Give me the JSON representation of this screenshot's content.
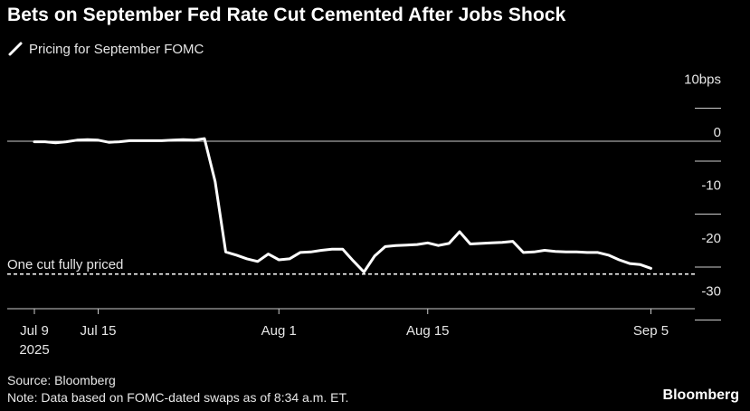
{
  "title": "Bets on September Fed Rate Cut Cemented After Jobs Shock",
  "legend": {
    "series_label": "Pricing for September FOMC",
    "icon": "slash-line-icon"
  },
  "source": "Source: Bloomberg",
  "note": "Note: Data based on FOMC-dated swaps as of 8:34 a.m. ET.",
  "brand": "Bloomberg",
  "colors": {
    "background": "#000000",
    "line": "#ffffff",
    "axis": "#cccccc",
    "text": "#e6e6e6"
  },
  "chart_data": {
    "type": "line",
    "title": "Bets on September Fed Rate Cut Cemented After Jobs Shock",
    "xlabel": "",
    "ylabel": "",
    "y_unit": "bps",
    "ylim": [
      -30,
      10
    ],
    "y_ticks": [
      10,
      0,
      -10,
      -20,
      -30
    ],
    "y_tick_labels": [
      "10bps",
      "0",
      "-10",
      "-20",
      "-30"
    ],
    "x_tick_dates": [
      "2025-07-09",
      "2025-07-15",
      "2025-08-01",
      "2025-08-15",
      "2025-09-05"
    ],
    "x_tick_labels": [
      "Jul 9",
      "Jul 15",
      "Aug 1",
      "Aug 15",
      "Sep 5"
    ],
    "x_year_label": "2025",
    "grid": false,
    "zero_line": true,
    "reference_line": {
      "label": "One cut fully priced",
      "y": -25,
      "style": "dashed"
    },
    "series": [
      {
        "name": "Pricing for September FOMC",
        "dates": [
          "2025-07-09",
          "2025-07-10",
          "2025-07-11",
          "2025-07-12",
          "2025-07-13",
          "2025-07-14",
          "2025-07-15",
          "2025-07-16",
          "2025-07-17",
          "2025-07-18",
          "2025-07-19",
          "2025-07-20",
          "2025-07-21",
          "2025-07-22",
          "2025-07-23",
          "2025-07-24",
          "2025-07-25",
          "2025-07-26",
          "2025-07-27",
          "2025-07-28",
          "2025-07-29",
          "2025-07-30",
          "2025-07-31",
          "2025-08-01",
          "2025-08-02",
          "2025-08-03",
          "2025-08-04",
          "2025-08-05",
          "2025-08-06",
          "2025-08-07",
          "2025-08-08",
          "2025-08-09",
          "2025-08-10",
          "2025-08-11",
          "2025-08-12",
          "2025-08-13",
          "2025-08-14",
          "2025-08-15",
          "2025-08-16",
          "2025-08-17",
          "2025-08-18",
          "2025-08-19",
          "2025-08-20",
          "2025-08-21",
          "2025-08-22",
          "2025-08-23",
          "2025-08-24",
          "2025-08-25",
          "2025-08-26",
          "2025-08-27",
          "2025-08-28",
          "2025-08-29",
          "2025-08-30",
          "2025-08-31",
          "2025-09-01",
          "2025-09-02",
          "2025-09-03",
          "2025-09-04",
          "2025-09-05"
        ],
        "values": [
          -0.1,
          -0.1,
          -0.3,
          -0.1,
          0.2,
          0.3,
          0.2,
          -0.2,
          -0.1,
          0.1,
          0.1,
          0.1,
          0.1,
          0.2,
          0.3,
          0.2,
          0.5,
          -7.6,
          -20.9,
          -21.5,
          -22.2,
          -22.7,
          -21.3,
          -22.4,
          -22.2,
          -21.0,
          -20.9,
          -20.6,
          -20.4,
          -20.4,
          -22.6,
          -24.7,
          -21.7,
          -19.9,
          -19.7,
          -19.6,
          -19.5,
          -19.2,
          -19.7,
          -19.3,
          -17.1,
          -19.4,
          -19.3,
          -19.2,
          -19.1,
          -18.9,
          -21.0,
          -20.9,
          -20.6,
          -20.8,
          -20.9,
          -20.9,
          -21.0,
          -21.0,
          -21.5,
          -22.4,
          -23.1,
          -23.3,
          -24.0
        ]
      }
    ]
  }
}
